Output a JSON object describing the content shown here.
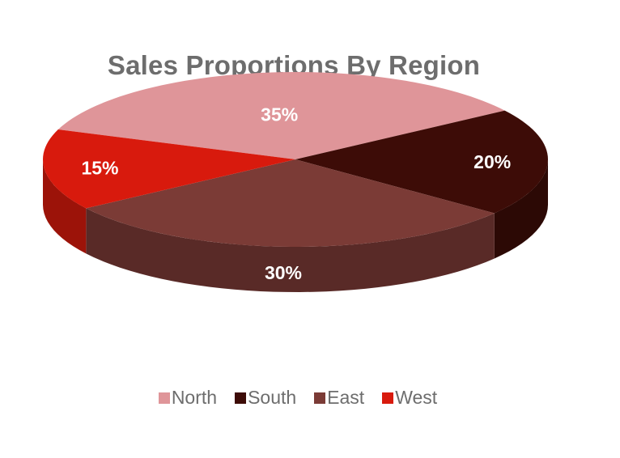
{
  "chart_data": {
    "type": "pie",
    "title": "Sales Proportions By Region",
    "categories": [
      "North",
      "South",
      "East",
      "West"
    ],
    "values": [
      35,
      20,
      30,
      15
    ],
    "data_labels": [
      "35%",
      "20%",
      "30%",
      "15%"
    ],
    "colors": {
      "North": "#df9599",
      "South": "#3d0c07",
      "East": "#7b3b36",
      "West": "#d81a0d"
    },
    "style": "3d",
    "legend_position": "bottom"
  }
}
